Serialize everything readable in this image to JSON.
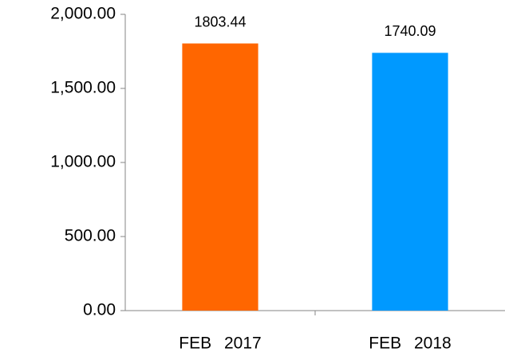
{
  "chart_data": {
    "type": "bar",
    "categories": [
      "FEB 2017",
      "FEB 2018"
    ],
    "values": [
      1803.44,
      1740.09
    ],
    "colors": [
      "#ff6600",
      "#0099ff"
    ],
    "ylim": [
      0,
      2000
    ],
    "yticks": [
      {
        "value": 0,
        "label": "0.00"
      },
      {
        "value": 500,
        "label": "500.00"
      },
      {
        "value": 1000,
        "label": "1,000.00"
      },
      {
        "value": 1500,
        "label": "1,500.00"
      },
      {
        "value": 2000,
        "label": "2,000.00"
      }
    ],
    "grid": false
  }
}
